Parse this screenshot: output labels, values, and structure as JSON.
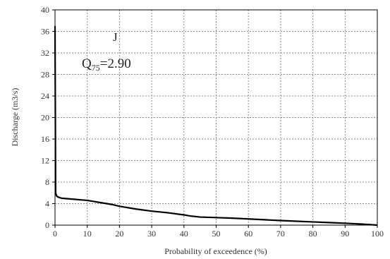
{
  "chart_data": {
    "type": "line",
    "title": "",
    "xlabel": "Probability of exceedence (%)",
    "ylabel": "Discharge (m3/s)",
    "xlim": [
      0,
      100
    ],
    "ylim": [
      0,
      40
    ],
    "x_ticks": [
      0,
      10,
      20,
      30,
      40,
      50,
      60,
      70,
      80,
      90,
      100
    ],
    "y_ticks": [
      0,
      4,
      8,
      12,
      16,
      20,
      24,
      28,
      32,
      36,
      40
    ],
    "grid": true,
    "line_color": "#000000",
    "series": [
      {
        "x": [
          0,
          0.2,
          0.5,
          1,
          2,
          4,
          6,
          8,
          10,
          12,
          14,
          16,
          18,
          20,
          22,
          25,
          30,
          35,
          40,
          42,
          45,
          50,
          55,
          60,
          65,
          70,
          75,
          80,
          85,
          90,
          95,
          98,
          100
        ],
        "values": [
          37,
          6,
          5.4,
          5.2,
          5.0,
          4.9,
          4.8,
          4.7,
          4.6,
          4.4,
          4.2,
          4.0,
          3.8,
          3.5,
          3.3,
          3.0,
          2.6,
          2.3,
          1.9,
          1.7,
          1.5,
          1.4,
          1.3,
          1.15,
          1.0,
          0.85,
          0.72,
          0.6,
          0.48,
          0.35,
          0.2,
          0.08,
          0
        ]
      }
    ],
    "annotations": {
      "label": "J",
      "q75_prefix": "Q",
      "q75_sub": "75",
      "q75_value": "=2.90"
    }
  }
}
